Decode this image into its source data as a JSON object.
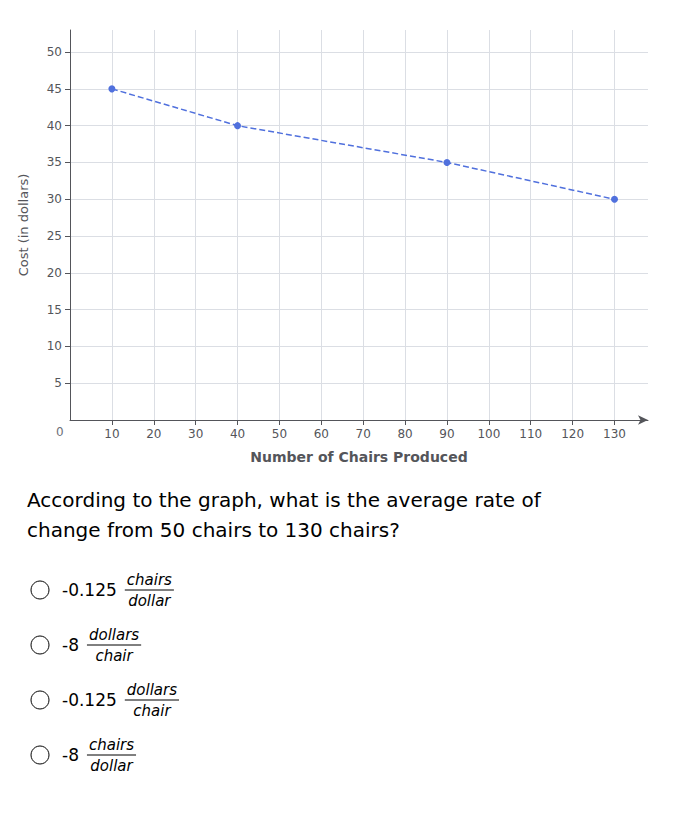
{
  "chart_data": {
    "type": "line",
    "marker": "circle",
    "line_style": "dashed",
    "x": [
      10,
      40,
      90,
      130
    ],
    "values": [
      45,
      40,
      35,
      30
    ],
    "xlim": [
      0,
      138
    ],
    "ylim": [
      0,
      53
    ],
    "xticks": [
      10,
      20,
      30,
      40,
      50,
      60,
      70,
      80,
      90,
      100,
      110,
      120,
      130
    ],
    "yticks": [
      5,
      10,
      15,
      20,
      25,
      30,
      35,
      40,
      45,
      50
    ],
    "xlabel": "Number of Chairs Produced",
    "ylabel": "Cost (in dollars)",
    "grid": true,
    "annotations": [
      "0"
    ],
    "question_text": [
      "According to the graph, what is the average rate of",
      "change from 50 chairs to 130 chairs?"
    ],
    "choices": [
      {
        "coefficient": "-0.125",
        "numerator": "chairs",
        "denominator": "dollar"
      },
      {
        "coefficient": "-8",
        "numerator": "dollars",
        "denominator": "chair"
      },
      {
        "coefficient": "-0.125",
        "numerator": "dollars",
        "denominator": "chair"
      },
      {
        "coefficient": "-8",
        "numerator": "chairs",
        "denominator": "dollar"
      }
    ]
  }
}
